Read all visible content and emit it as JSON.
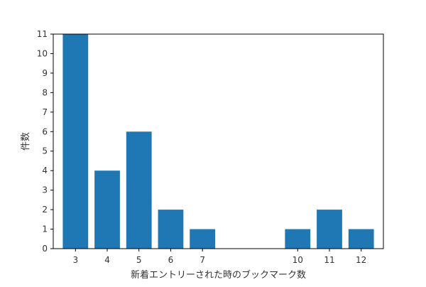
{
  "chart_data": {
    "type": "bar",
    "x": [
      3,
      4,
      5,
      6,
      7,
      10,
      11,
      12
    ],
    "values": [
      11,
      4,
      6,
      2,
      1,
      1,
      2,
      1
    ],
    "xlabel": "新着エントリーされた時のブックマーク数",
    "ylabel": "件数",
    "xlim": [
      2.3,
      12.7
    ],
    "ylim": [
      0,
      11
    ],
    "xticks": [
      3,
      4,
      5,
      6,
      7,
      10,
      11,
      12
    ],
    "yticks": [
      0,
      1,
      2,
      3,
      4,
      5,
      6,
      7,
      8,
      9,
      10,
      11
    ],
    "bar_color": "#1f77b4",
    "grid": false,
    "legend": false
  }
}
